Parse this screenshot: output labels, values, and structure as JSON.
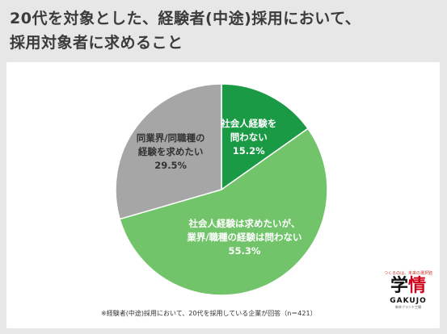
{
  "title": {
    "line1": "20代を対象とした、経験者(中途)採用において、",
    "line2": "採用対象者に求めること"
  },
  "chart_data": {
    "type": "pie",
    "slices": [
      {
        "label_lines": [
          "社会人経験を",
          "問わない"
        ],
        "value": 15.2,
        "value_text": "15.2%",
        "color": "#1b9a46",
        "text_color": "#ffffff"
      },
      {
        "label_lines": [
          "社会人経験は求めたいが、",
          "業界/職種の経験は問わない"
        ],
        "value": 55.3,
        "value_text": "55.3%",
        "color": "#72c46a",
        "text_color": "#ffffff"
      },
      {
        "label_lines": [
          "同業界/同職種の",
          "経験を求めたい"
        ],
        "value": 29.5,
        "value_text": "29.5%",
        "color": "#a6a6a6",
        "text_color": "#333333"
      }
    ]
  },
  "footnote": "※経験者(中途)採用において、20代を採用している企業が回答（n＝421）",
  "logo": {
    "tagline": "つくるのは、未来の選択肢",
    "mark_main": "学",
    "mark_accent": "情",
    "brand": "GAKUJO",
    "sub": "新卒ブランド工場"
  }
}
